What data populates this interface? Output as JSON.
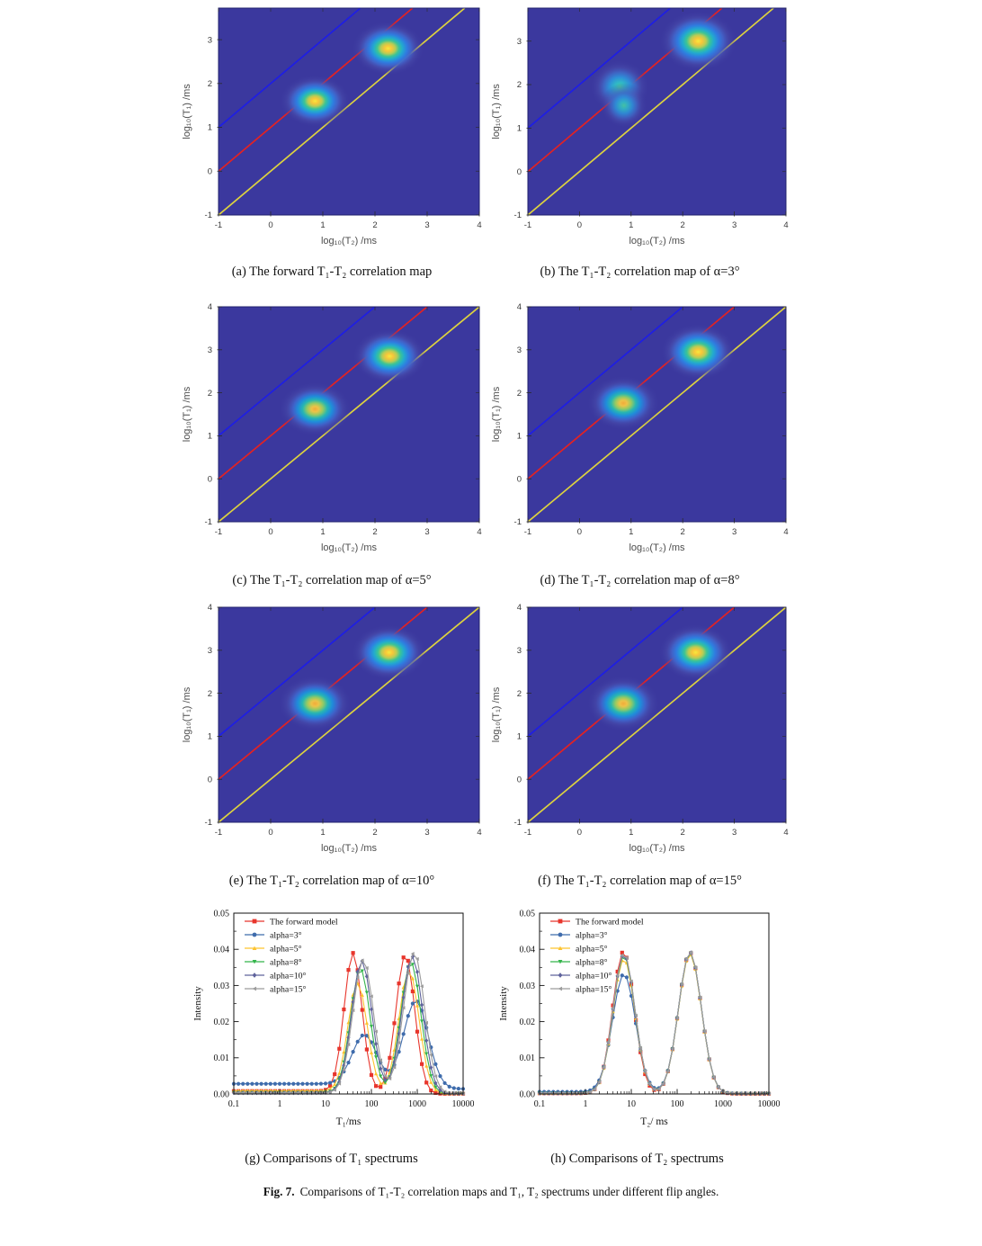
{
  "figure_caption": {
    "prefix": "Fig. 7.",
    "text": "Comparisons of T₁-T₂ correlation maps and T₁, T₂ spectrums under different flip angles."
  },
  "palettes": {
    "strong-yellow": [
      [
        0,
        "#f7e93c",
        1
      ],
      [
        0.1,
        "#f7c63a",
        1
      ],
      [
        0.2,
        "#b7cc55",
        1
      ],
      [
        0.3,
        "#3cc495",
        1
      ],
      [
        0.4,
        "#22aacf",
        1
      ],
      [
        0.52,
        "#2f7ce0",
        1
      ],
      [
        0.64,
        "#4262c8",
        0.95
      ],
      [
        0.78,
        "#4a4fae",
        0.5
      ],
      [
        1,
        "#3b389e",
        0
      ]
    ],
    "orange-core": [
      [
        0,
        "#f2ab3a",
        1
      ],
      [
        0.1,
        "#ecc348",
        1
      ],
      [
        0.22,
        "#93ca64",
        1
      ],
      [
        0.34,
        "#27b6b2",
        1
      ],
      [
        0.47,
        "#1f8cda",
        1
      ],
      [
        0.6,
        "#3f64cc",
        0.95
      ],
      [
        0.76,
        "#4a4fae",
        0.5
      ],
      [
        1,
        "#3b389e",
        0
      ]
    ],
    "weak-teal": [
      [
        0,
        "#45cda4",
        1
      ],
      [
        0.16,
        "#30b9c6",
        1
      ],
      [
        0.36,
        "#2e8ed8",
        1
      ],
      [
        0.54,
        "#3f68c6",
        0.92
      ],
      [
        0.74,
        "#4a4fae",
        0.45
      ],
      [
        1,
        "#3b389e",
        0
      ]
    ]
  },
  "chart_data": [
    {
      "id": "a",
      "type": "heatmap",
      "caption": "(a) The forward T₁-T₂ correlation map",
      "xlabel": "log₁₀(T₂) /ms",
      "ylabel": "log₁₀(T₁) /ms",
      "xlim": [
        -1,
        4
      ],
      "ylim": [
        -1,
        3.72
      ],
      "xticks": [
        -1,
        0,
        1,
        2,
        3,
        4
      ],
      "yticks": [
        -1,
        0,
        1,
        2,
        3
      ],
      "bg": "#3b389e",
      "lines": [
        {
          "offset": 2,
          "color": "#1e1ee4"
        },
        {
          "offset": 1,
          "color": "#e32222"
        },
        {
          "offset": 0,
          "color": "#ddd23f"
        }
      ],
      "blobs": [
        {
          "x": 0.85,
          "y": 1.6,
          "rx": 0.68,
          "ry": 0.6,
          "palette": "strong-yellow"
        },
        {
          "x": 2.25,
          "y": 2.8,
          "rx": 0.7,
          "ry": 0.62,
          "palette": "strong-yellow"
        }
      ]
    },
    {
      "id": "b",
      "type": "heatmap",
      "caption": "(b) The T₁-T₂ correlation map of α=3°",
      "xlabel": "log₁₀(T₂) /ms",
      "ylabel": "log₁₀(T₁) /ms",
      "xlim": [
        -1,
        4
      ],
      "ylim": [
        -1,
        3.76
      ],
      "xticks": [
        -1,
        0,
        1,
        2,
        3,
        4
      ],
      "yticks": [
        -1,
        0,
        1,
        2,
        3
      ],
      "bg": "#3b389e",
      "lines": [
        {
          "offset": 2,
          "color": "#1e1ee4"
        },
        {
          "offset": 1,
          "color": "#e32222"
        },
        {
          "offset": 0,
          "color": "#ddd23f"
        }
      ],
      "blobs": [
        {
          "x": 0.78,
          "y": 1.95,
          "rx": 0.58,
          "ry": 0.62,
          "palette": "weak-teal"
        },
        {
          "x": 0.86,
          "y": 1.52,
          "rx": 0.46,
          "ry": 0.52,
          "palette": "weak-teal",
          "opacity": 0.9
        },
        {
          "x": 2.3,
          "y": 3.0,
          "rx": 0.76,
          "ry": 0.7,
          "palette": "strong-yellow"
        }
      ]
    },
    {
      "id": "c",
      "type": "heatmap",
      "caption": "(c) The T₁-T₂ correlation map of α=5°",
      "xlabel": "log₁₀(T₂) /ms",
      "ylabel": "log₁₀(T₁) /ms",
      "xlim": [
        -1,
        4
      ],
      "ylim": [
        -1,
        4
      ],
      "xticks": [
        -1,
        0,
        1,
        2,
        3,
        4
      ],
      "yticks": [
        -1,
        0,
        1,
        2,
        3,
        4
      ],
      "bg": "#3b389e",
      "lines": [
        {
          "offset": 2,
          "color": "#1e1ee4"
        },
        {
          "offset": 1,
          "color": "#e32222"
        },
        {
          "offset": 0,
          "color": "#ddd23f"
        }
      ],
      "blobs": [
        {
          "x": 0.85,
          "y": 1.62,
          "rx": 0.7,
          "ry": 0.63,
          "palette": "orange-core"
        },
        {
          "x": 2.28,
          "y": 2.85,
          "rx": 0.71,
          "ry": 0.64,
          "palette": "strong-yellow"
        }
      ]
    },
    {
      "id": "d",
      "type": "heatmap",
      "caption": "(d) The T₁-T₂ correlation map of α=8°",
      "xlabel": "log₁₀(T₂) /ms",
      "ylabel": "log₁₀(T₁) /ms",
      "xlim": [
        -1,
        4
      ],
      "ylim": [
        -1,
        4
      ],
      "xticks": [
        -1,
        0,
        1,
        2,
        3,
        4
      ],
      "yticks": [
        -1,
        0,
        1,
        2,
        3,
        4
      ],
      "bg": "#3b389e",
      "lines": [
        {
          "offset": 2,
          "color": "#1e1ee4"
        },
        {
          "offset": 1,
          "color": "#e32222"
        },
        {
          "offset": 0,
          "color": "#ddd23f"
        }
      ],
      "blobs": [
        {
          "x": 0.85,
          "y": 1.76,
          "rx": 0.71,
          "ry": 0.64,
          "palette": "orange-core"
        },
        {
          "x": 2.3,
          "y": 2.95,
          "rx": 0.73,
          "ry": 0.66,
          "palette": "strong-yellow"
        }
      ]
    },
    {
      "id": "e",
      "type": "heatmap",
      "caption": "(e) The T₁-T₂ correlation map of α=10°",
      "xlabel": "log₁₀(T₂) /ms",
      "ylabel": "log₁₀(T₁) /ms",
      "xlim": [
        -1,
        4
      ],
      "ylim": [
        -1,
        4
      ],
      "xticks": [
        -1,
        0,
        1,
        2,
        3,
        4
      ],
      "yticks": [
        -1,
        0,
        1,
        2,
        3,
        4
      ],
      "bg": "#3b389e",
      "lines": [
        {
          "offset": 2,
          "color": "#1e1ee4"
        },
        {
          "offset": 1,
          "color": "#e32222"
        },
        {
          "offset": 0,
          "color": "#ddd23f"
        }
      ],
      "blobs": [
        {
          "x": 0.85,
          "y": 1.76,
          "rx": 0.71,
          "ry": 0.65,
          "palette": "orange-core"
        },
        {
          "x": 2.27,
          "y": 2.95,
          "rx": 0.72,
          "ry": 0.65,
          "palette": "strong-yellow"
        }
      ]
    },
    {
      "id": "f",
      "type": "heatmap",
      "caption": "(f) The T₁-T₂ correlation map of α=15°",
      "xlabel": "log₁₀(T₂) /ms",
      "ylabel": "log₁₀(T₁) /ms",
      "xlim": [
        -1,
        4
      ],
      "ylim": [
        -1,
        4
      ],
      "xticks": [
        -1,
        0,
        1,
        2,
        3,
        4
      ],
      "yticks": [
        -1,
        0,
        1,
        2,
        3,
        4
      ],
      "bg": "#3b389e",
      "lines": [
        {
          "offset": 2,
          "color": "#1e1ee4"
        },
        {
          "offset": 1,
          "color": "#e32222"
        },
        {
          "offset": 0,
          "color": "#ddd23f"
        }
      ],
      "blobs": [
        {
          "x": 0.85,
          "y": 1.76,
          "rx": 0.71,
          "ry": 0.65,
          "palette": "orange-core"
        },
        {
          "x": 2.25,
          "y": 2.95,
          "rx": 0.72,
          "ry": 0.66,
          "palette": "strong-yellow"
        }
      ]
    },
    {
      "id": "g",
      "type": "line",
      "caption": "(g) Comparisons of T₁ spectrums",
      "xlabel": "T₁/ms",
      "ylabel": "Intensity",
      "xlim_log": [
        -1,
        4
      ],
      "ylim": [
        0,
        0.05
      ],
      "xtick_labels": [
        "0.1",
        "1",
        "10",
        "100",
        "1000",
        "10000"
      ],
      "ytick_labels": [
        "0.00",
        "0.01",
        "0.02",
        "0.03",
        "0.04",
        "0.05"
      ],
      "legend_position": "top-left",
      "grid": false,
      "series": [
        {
          "name": "The forward model",
          "color": "#e8352c",
          "marker": "square",
          "base_left": 0.0008,
          "base_right": 5e-05,
          "peaks": [
            {
              "c": 1.6,
              "h": 0.0382,
              "s": 0.195
            },
            {
              "c": 2.74,
              "h": 0.0384,
              "s": 0.205
            }
          ]
        },
        {
          "name": "alpha=3°",
          "color": "#3f6cac",
          "marker": "circle",
          "base_left": 0.0028,
          "base_right": 0.0014,
          "peaks": [
            {
              "c": 1.85,
              "h": 0.0136,
              "s": 0.27
            },
            {
              "c": 2.97,
              "h": 0.0243,
              "s": 0.27
            }
          ]
        },
        {
          "name": "alpha=5°",
          "color": "#fdc32f",
          "marker": "triangle-up",
          "base_left": 0.0009,
          "base_right": 0.0001,
          "peaks": [
            {
              "c": 1.7,
              "h": 0.0297,
              "s": 0.21
            },
            {
              "c": 2.82,
              "h": 0.034,
              "s": 0.22
            }
          ]
        },
        {
          "name": "alpha=8°",
          "color": "#33b44a",
          "marker": "triangle-down",
          "base_left": 0.0004,
          "base_right": 0.0001,
          "peaks": [
            {
              "c": 1.76,
              "h": 0.0342,
              "s": 0.215
            },
            {
              "c": 2.86,
              "h": 0.0363,
              "s": 0.22
            }
          ]
        },
        {
          "name": "alpha=10°",
          "color": "#5f639c",
          "marker": "diamond",
          "base_left": 0.0003,
          "base_right": 0.0001,
          "peaks": [
            {
              "c": 1.79,
              "h": 0.0365,
              "s": 0.22
            },
            {
              "c": 2.89,
              "h": 0.0379,
              "s": 0.225
            }
          ]
        },
        {
          "name": "alpha=15°",
          "color": "#9c9c9c",
          "marker": "triangle-left",
          "base_left": 0.0003,
          "base_right": 0.0001,
          "peaks": [
            {
              "c": 1.82,
              "h": 0.0368,
              "s": 0.225
            },
            {
              "c": 2.93,
              "h": 0.039,
              "s": 0.23
            }
          ]
        }
      ]
    },
    {
      "id": "h",
      "type": "line",
      "caption": "(h) Comparisons of T₂ spectrums",
      "xlabel": "T₂/ ms",
      "ylabel": "Intensity",
      "xlim_log": [
        -1,
        4
      ],
      "ylim": [
        0,
        0.05
      ],
      "xtick_labels": [
        "0.1",
        "1",
        "10",
        "100",
        "1000",
        "10000"
      ],
      "ytick_labels": [
        "0.00",
        "0.01",
        "0.02",
        "0.03",
        "0.04",
        "0.05"
      ],
      "legend_position": "top-left",
      "grid": false,
      "series": [
        {
          "name": "The forward model",
          "color": "#e8352c",
          "marker": "square",
          "base_left": 0.0002,
          "base_right": 5e-05,
          "peaks": [
            {
              "c": 0.83,
              "h": 0.0392,
              "s": 0.235
            },
            {
              "c": 2.28,
              "h": 0.039,
              "s": 0.25
            }
          ]
        },
        {
          "name": "alpha=3°",
          "color": "#3f6cac",
          "marker": "circle",
          "base_left": 0.0006,
          "base_right": 0.0001,
          "peaks": [
            {
              "c": 0.84,
              "h": 0.0326,
              "s": 0.25
            },
            {
              "c": 2.28,
              "h": 0.039,
              "s": 0.25
            }
          ]
        },
        {
          "name": "alpha=5°",
          "color": "#fdc32f",
          "marker": "triangle-up",
          "base_left": 0.0002,
          "base_right": 0.0001,
          "peaks": [
            {
              "c": 0.84,
              "h": 0.0372,
              "s": 0.24
            },
            {
              "c": 2.28,
              "h": 0.0386,
              "s": 0.25
            }
          ]
        },
        {
          "name": "alpha=8°",
          "color": "#33b44a",
          "marker": "triangle-down",
          "base_left": 0.0002,
          "base_right": 0.0001,
          "peaks": [
            {
              "c": 0.84,
              "h": 0.038,
              "s": 0.24
            },
            {
              "c": 2.28,
              "h": 0.039,
              "s": 0.25
            }
          ]
        },
        {
          "name": "alpha=10°",
          "color": "#5f639c",
          "marker": "diamond",
          "base_left": 0.0002,
          "base_right": 0.0001,
          "peaks": [
            {
              "c": 0.84,
              "h": 0.0384,
              "s": 0.24
            },
            {
              "c": 2.28,
              "h": 0.0391,
              "s": 0.25
            }
          ]
        },
        {
          "name": "alpha=15°",
          "color": "#9c9c9c",
          "marker": "triangle-left",
          "base_left": 0.0002,
          "base_right": 0.0001,
          "peaks": [
            {
              "c": 0.84,
              "h": 0.0387,
              "s": 0.24
            },
            {
              "c": 2.28,
              "h": 0.0392,
              "s": 0.25
            }
          ]
        }
      ]
    }
  ]
}
